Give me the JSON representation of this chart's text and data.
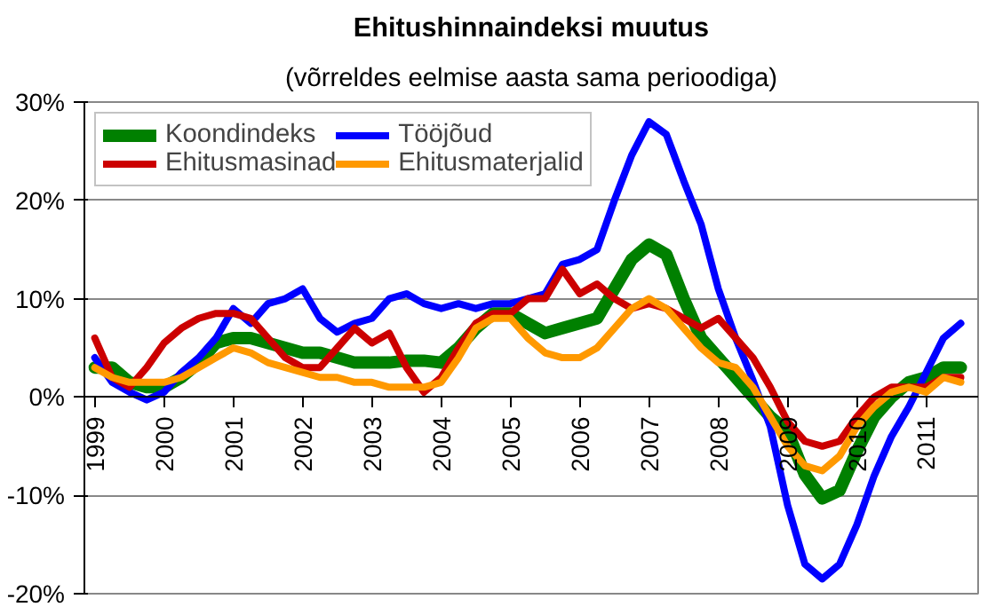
{
  "chart_data": {
    "type": "line",
    "title": "Ehitushinnaindeksi muutus",
    "subtitle": "(võrreldes eelmise aasta sama perioodiga)",
    "x": [
      1999,
      1999.25,
      1999.5,
      1999.75,
      2000,
      2000.25,
      2000.5,
      2000.75,
      2001,
      2001.25,
      2001.5,
      2001.75,
      2002,
      2002.25,
      2002.5,
      2002.75,
      2003,
      2003.25,
      2003.5,
      2003.75,
      2004,
      2004.25,
      2004.5,
      2004.75,
      2005,
      2005.25,
      2005.5,
      2005.75,
      2006,
      2006.25,
      2006.5,
      2006.75,
      2007,
      2007.25,
      2007.5,
      2007.75,
      2008,
      2008.25,
      2008.5,
      2008.75,
      2009,
      2009.25,
      2009.5,
      2009.75,
      2010,
      2010.25,
      2010.5,
      2010.75,
      2011,
      2011.25,
      2011.5
    ],
    "series": [
      {
        "name": "Koondindeks",
        "color": "#008000",
        "values": [
          3,
          3,
          1.5,
          1,
          1,
          2,
          3.5,
          5.5,
          6,
          6,
          5.5,
          5,
          4.5,
          4.5,
          4,
          3.5,
          3.5,
          3.5,
          3.7,
          3.7,
          3.5,
          5,
          7,
          8.5,
          8.5,
          7.5,
          6.5,
          7,
          7.5,
          8,
          11,
          14,
          15.5,
          14.5,
          10,
          6,
          4,
          2,
          0,
          -2,
          -3.5,
          -7.9,
          -10.3,
          -9.5,
          -5.5,
          -2,
          0,
          1.5,
          2,
          3,
          3
        ]
      },
      {
        "name": "Tööjõud",
        "color": "#0000ff",
        "values": [
          4,
          1.5,
          0.5,
          -0.3,
          0.5,
          2.5,
          4,
          6,
          9,
          7.5,
          9.5,
          10,
          11,
          8,
          6.6,
          7.5,
          8,
          10,
          10.5,
          9.5,
          9,
          9.5,
          9,
          9.5,
          9.5,
          10,
          10.5,
          13.5,
          14,
          15,
          20,
          24.6,
          28,
          26.7,
          22,
          17.6,
          11,
          6,
          1.7,
          -3,
          -11,
          -17,
          -18.5,
          -17,
          -13,
          -8,
          -4,
          -1,
          2.5,
          6,
          7.5
        ]
      },
      {
        "name": "Ehitusmasinad",
        "color": "#cc0000",
        "values": [
          6,
          2,
          1,
          3,
          5.5,
          7,
          8,
          8.5,
          8.5,
          8,
          6,
          4,
          3,
          3,
          5,
          7,
          5.5,
          6.5,
          3,
          0.5,
          2,
          5,
          7.5,
          8.5,
          8.5,
          10,
          10,
          13,
          10.5,
          11.5,
          10,
          9,
          9.5,
          9,
          8,
          7,
          8,
          6,
          4,
          1,
          -2.5,
          -4.5,
          -5,
          -4.5,
          -2,
          0,
          1,
          1,
          1,
          2,
          2
        ]
      },
      {
        "name": "Ehitusmaterjalid",
        "color": "#ff9900",
        "values": [
          3,
          2,
          1.5,
          1.5,
          1.5,
          2,
          3,
          4,
          5,
          4.5,
          3.5,
          3,
          2.5,
          2,
          2,
          1.5,
          1.5,
          1,
          1,
          1,
          1.5,
          4,
          7,
          8,
          8,
          6,
          4.5,
          4,
          4,
          5,
          7,
          9,
          10,
          9,
          7,
          5,
          3.5,
          3,
          1,
          -2,
          -5,
          -7,
          -7.5,
          -6,
          -3,
          -1,
          0.5,
          1,
          0.5,
          2,
          1.5
        ]
      }
    ],
    "xlim": [
      1998.85,
      2011.75
    ],
    "xticks": [
      1999,
      2000,
      2001,
      2002,
      2003,
      2004,
      2005,
      2006,
      2007,
      2008,
      2009,
      2010,
      2011
    ],
    "ylim": [
      -20,
      30
    ],
    "yticks": [
      {
        "value": -20,
        "label": "-20%"
      },
      {
        "value": -10,
        "label": "-10%"
      },
      {
        "value": 0,
        "label": "0%"
      },
      {
        "value": 10,
        "label": "10%"
      },
      {
        "value": 20,
        "label": "20%"
      },
      {
        "value": 30,
        "label": "30%"
      }
    ],
    "grid": "y",
    "legend": "top left",
    "line_style": "solid",
    "marker": "none"
  }
}
